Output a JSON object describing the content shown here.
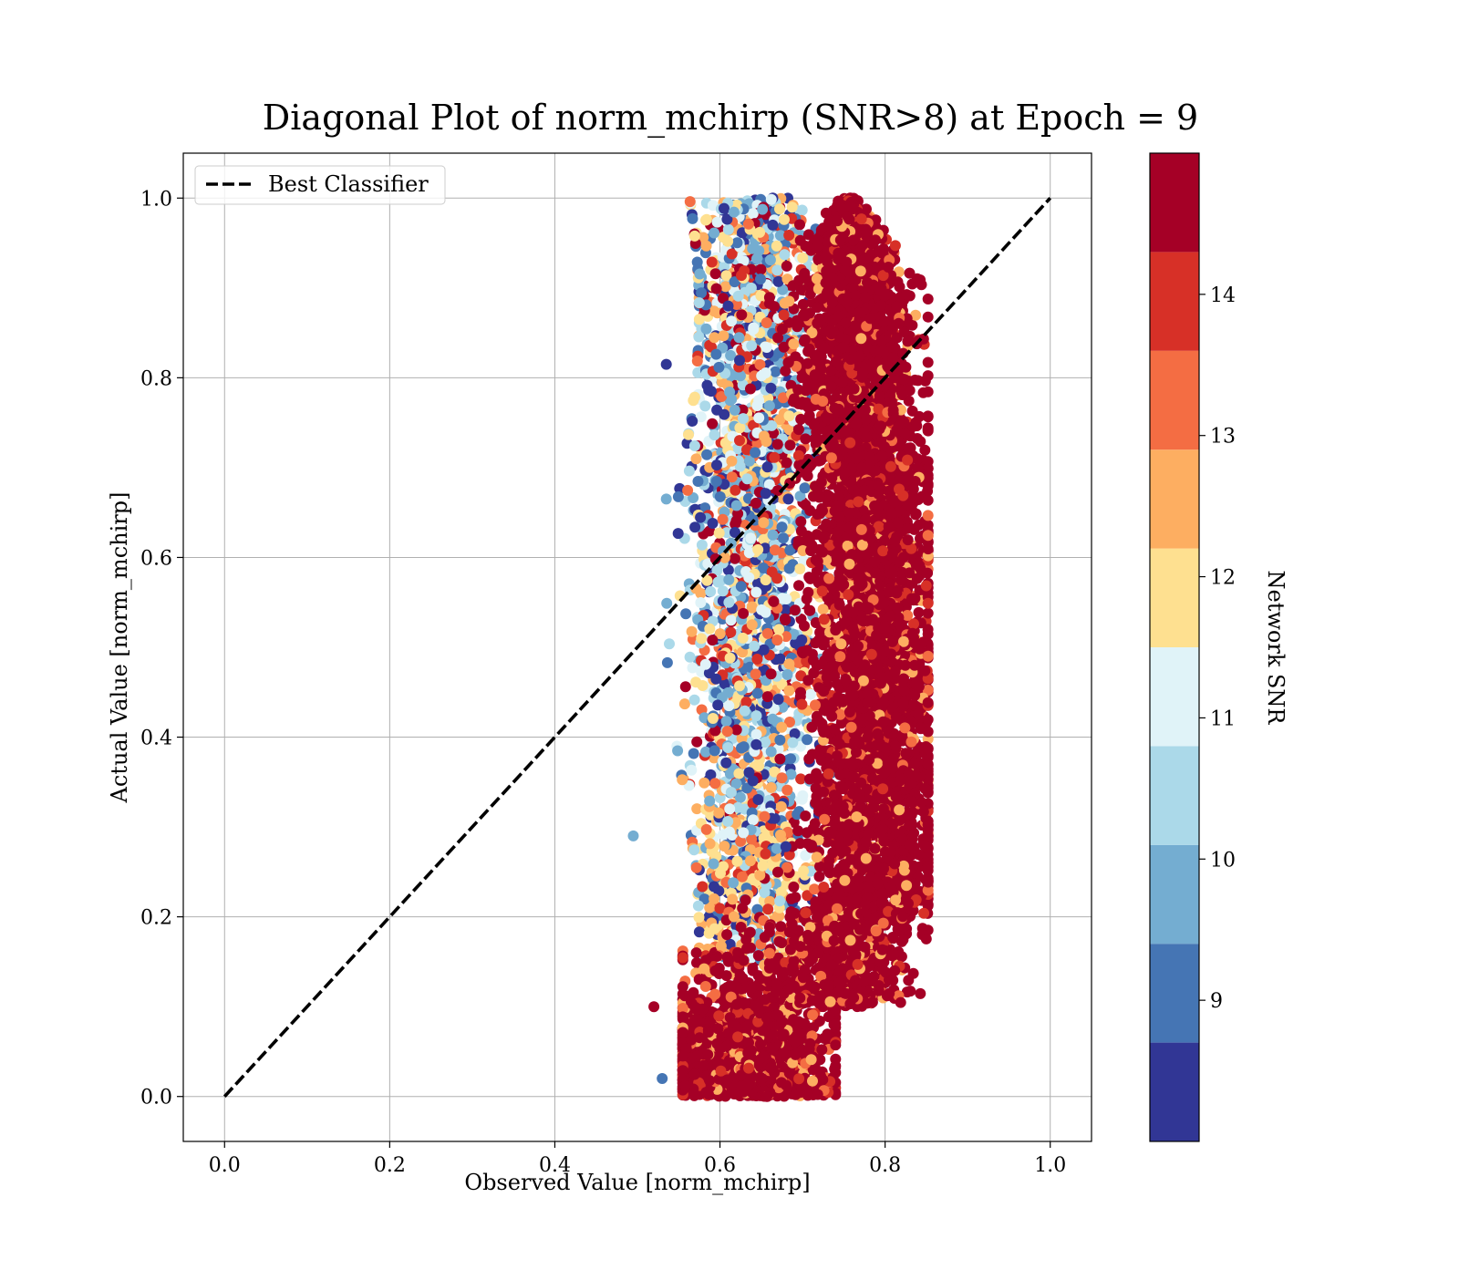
{
  "chart_data": {
    "type": "scatter",
    "title": "Diagonal Plot of norm_mchirp (SNR>8) at Epoch = 9",
    "xlabel": "Observed Value [norm_mchirp]",
    "ylabel": "Actual Value [norm_mchirp]",
    "xlim": [
      -0.05,
      1.05
    ],
    "ylim": [
      -0.05,
      1.05
    ],
    "xticks": [
      "0.0",
      "0.2",
      "0.4",
      "0.6",
      "0.8",
      "1.0"
    ],
    "yticks": [
      "0.0",
      "0.2",
      "0.4",
      "0.6",
      "0.8",
      "1.0"
    ],
    "grid": true,
    "legend": {
      "position": "upper-left",
      "entries": [
        {
          "label": "Best Classifier",
          "style": "dashed",
          "color": "#000000"
        }
      ]
    },
    "reference_line": {
      "name": "Best Classifier",
      "x": [
        0.0,
        1.0
      ],
      "y": [
        0.0,
        1.0
      ]
    },
    "series": [
      {
        "color_by": "Network SNR",
        "x_range": [
          0.5,
          0.85
        ],
        "y_range": [
          0.0,
          1.0
        ],
        "clusters": [
          {
            "description": "dense high-SNR band",
            "x_center": 0.77,
            "x_spread": 0.045,
            "y_range": [
              0.1,
              1.0
            ],
            "snr_range": [
              14,
              15
            ]
          },
          {
            "description": "lower-left high-SNR lobe",
            "x_center": 0.63,
            "x_spread": 0.05,
            "y_range": [
              0.0,
              0.2
            ],
            "snr_range": [
              13,
              15
            ]
          },
          {
            "description": "mixed low-SNR band",
            "x_center": 0.64,
            "x_spread": 0.05,
            "y_range": [
              0.15,
              1.0
            ],
            "snr_range": [
              8,
              13
            ]
          }
        ],
        "outliers": [
          {
            "x": 0.495,
            "y": 0.29,
            "snr": 9.8
          },
          {
            "x": 0.53,
            "y": 0.02,
            "snr": 9.3
          },
          {
            "x": 0.52,
            "y": 0.1,
            "snr": 14.8
          },
          {
            "x": 0.535,
            "y": 0.665,
            "snr": 9.8
          },
          {
            "x": 0.535,
            "y": 0.815,
            "snr": 8.4
          }
        ]
      }
    ],
    "colorbar": {
      "label": "Network SNR",
      "range": [
        8,
        15
      ],
      "ticks": [
        "9",
        "10",
        "11",
        "12",
        "13",
        "14"
      ],
      "levels": [
        8.0,
        8.7,
        9.4,
        10.1,
        10.8,
        11.5,
        12.2,
        12.9,
        13.6,
        14.3,
        15.0
      ],
      "colors": [
        "#313695",
        "#4575b4",
        "#74add1",
        "#abd9e9",
        "#e0f3f8",
        "#fee090",
        "#fdae61",
        "#f46d43",
        "#d73027",
        "#a50026"
      ]
    }
  }
}
